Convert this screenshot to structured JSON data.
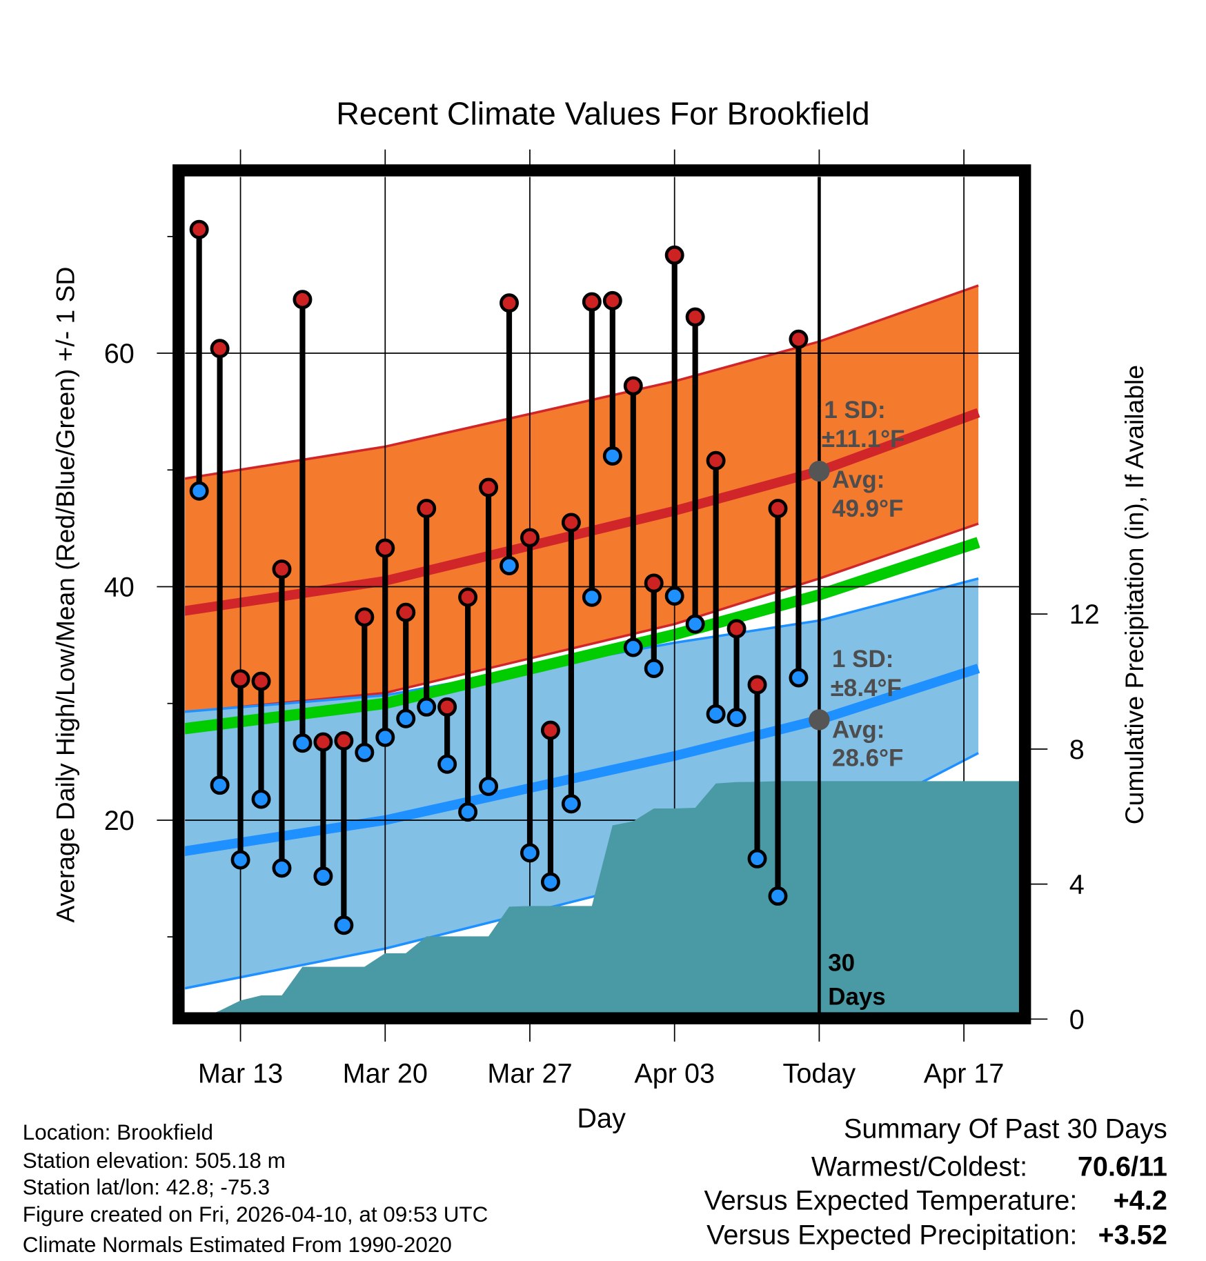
{
  "chart_data": {
    "type": "line",
    "title": "Recent Climate Values For Brookfield",
    "xlabel": "Day",
    "ylabel": "Average Daily High/Low/Mean (Red/Blue/Green) +/- 1 SD",
    "ylabel_right": "Cumulative Precipitation (in), If Available",
    "x_unit": "days relative to today (Apr 10)",
    "xlim": [
      -32.68,
      7.7
    ],
    "ylim": [
      3.5,
      75.1
    ],
    "ylim_right": [
      0,
      24.95
    ],
    "x_ticks": [
      {
        "value": -28,
        "label": "Mar 13"
      },
      {
        "value": -21,
        "label": "Mar 20"
      },
      {
        "value": -14,
        "label": "Mar 27"
      },
      {
        "value": -7,
        "label": "Apr 03"
      },
      {
        "value": 0,
        "label": "Today"
      },
      {
        "value": 7,
        "label": "Apr 17"
      }
    ],
    "y_ticks": [
      {
        "value": 20,
        "label": "20"
      },
      {
        "value": 40,
        "label": "40"
      },
      {
        "value": 60,
        "label": "60"
      }
    ],
    "y_minor_ticks": [
      10,
      30,
      50,
      70
    ],
    "y_ticks_right": [
      {
        "value": 0,
        "label": "0"
      },
      {
        "value": 4,
        "label": "4"
      },
      {
        "value": 8,
        "label": "8"
      },
      {
        "value": 12,
        "label": "12"
      }
    ],
    "grid": true,
    "days": [
      "Mar 11",
      "Mar 12",
      "Mar 13",
      "Mar 14",
      "Mar 15",
      "Mar 16",
      "Mar 17",
      "Mar 18",
      "Mar 19",
      "Mar 20",
      "Mar 21",
      "Mar 22",
      "Mar 23",
      "Mar 24",
      "Mar 25",
      "Mar 26",
      "Mar 27",
      "Mar 28",
      "Mar 29",
      "Mar 30",
      "Mar 31",
      "Apr 01",
      "Apr 02",
      "Apr 03",
      "Apr 04",
      "Apr 05",
      "Apr 06",
      "Apr 07",
      "Apr 08",
      "Apr 09"
    ],
    "x": [
      -30,
      -29,
      -28,
      -27,
      -26,
      -25,
      -24,
      -23,
      -22,
      -21,
      -20,
      -19,
      -18,
      -17,
      -16,
      -15,
      -14,
      -13,
      -12,
      -11,
      -10,
      -9,
      -8,
      -7,
      -6,
      -5,
      -4,
      -3,
      -2,
      -1
    ],
    "series": [
      {
        "name": "Daily High",
        "color": "#cc2222",
        "values": [
          70.6,
          60.4,
          32.1,
          31.9,
          41.5,
          64.6,
          26.7,
          26.8,
          37.4,
          43.3,
          37.8,
          46.7,
          29.7,
          39.1,
          48.5,
          64.3,
          44.2,
          27.7,
          45.5,
          64.4,
          64.5,
          57.2,
          40.3,
          68.4,
          63.1,
          50.8,
          36.4,
          31.6,
          46.7,
          61.2
        ]
      },
      {
        "name": "Daily Low",
        "color": "#1e90ff",
        "values": [
          48.2,
          23.0,
          16.6,
          21.8,
          15.9,
          26.6,
          15.2,
          11.0,
          25.8,
          27.1,
          28.7,
          29.7,
          24.8,
          20.7,
          22.9,
          41.8,
          17.2,
          14.7,
          21.4,
          39.1,
          51.2,
          34.8,
          33.0,
          39.2,
          36.8,
          29.1,
          28.8,
          16.7,
          13.5,
          32.2
        ]
      },
      {
        "name": "Cumulative Precipitation",
        "color": "#4a9aa5",
        "axis": "right",
        "values": [
          0,
          0.25,
          0.55,
          0.7,
          0.7,
          1.55,
          1.55,
          1.55,
          1.55,
          1.95,
          1.95,
          2.45,
          2.45,
          2.45,
          2.45,
          3.33,
          3.35,
          3.35,
          3.35,
          3.35,
          5.74,
          5.86,
          6.24,
          6.24,
          6.26,
          6.98,
          7.02,
          7.03,
          7.05,
          7.05
        ]
      }
    ],
    "normals": {
      "x": [
        -32.68,
        -21,
        -7,
        0,
        7.7
      ],
      "high_mean": [
        37.4,
        40.5,
        46.5,
        49.9,
        54.9
      ],
      "high_upper": [
        48.7,
        52.0,
        57.6,
        61.0,
        65.8
      ],
      "high_lower": [
        28.9,
        30.9,
        36.8,
        40.7,
        45.4
      ],
      "mean_temp": [
        27.4,
        30.0,
        35.9,
        39.3,
        43.8
      ],
      "low_mean": [
        16.8,
        20.0,
        25.5,
        28.6,
        33.0
      ],
      "low_upper": [
        29.0,
        30.7,
        35.2,
        37.1,
        40.7
      ],
      "low_lower": [
        4.9,
        9.0,
        15.2,
        18.7,
        25.75
      ]
    },
    "colors": {
      "high_band": "#f47a2e",
      "high_line": "#d0262a",
      "low_band": "#82c0e6",
      "low_line": "#1e90ff",
      "mean_line": "#00cc00",
      "precip": "#4a9aa5",
      "marker_gray": "#555555"
    },
    "annotations": {
      "high_sd_label": "1 SD:",
      "high_sd_value": "±11.1°F",
      "high_avg_label": "Avg:",
      "high_avg_value": "49.9°F",
      "high_avg": 49.9,
      "low_sd_label": "1 SD:",
      "low_sd_value": "±8.4°F",
      "low_avg_label": "Avg:",
      "low_avg_value": "28.6°F",
      "low_avg": 28.6,
      "days_num": "30",
      "days_word": "Days"
    }
  },
  "footer": {
    "location": "Location: Brookfield",
    "elevation": "Station elevation: 505.18 m",
    "latlon": "Station lat/lon: 42.8; -75.3",
    "created": "Figure created on Fri, 2026-04-10, at 09:53 UTC",
    "normals": "Climate Normals Estimated From 1990-2020"
  },
  "summary": {
    "title": "Summary Of Past 30 Days",
    "warm_cold_label": "Warmest/Coldest:",
    "warm_cold_value": "70.6/11",
    "temp_label": "Versus Expected Temperature:",
    "temp_value": "+4.2",
    "temp_color": "#d0262a",
    "precip_label": "Versus Expected Precipitation:",
    "precip_value": "+3.52",
    "precip_color": "#22bb22"
  }
}
